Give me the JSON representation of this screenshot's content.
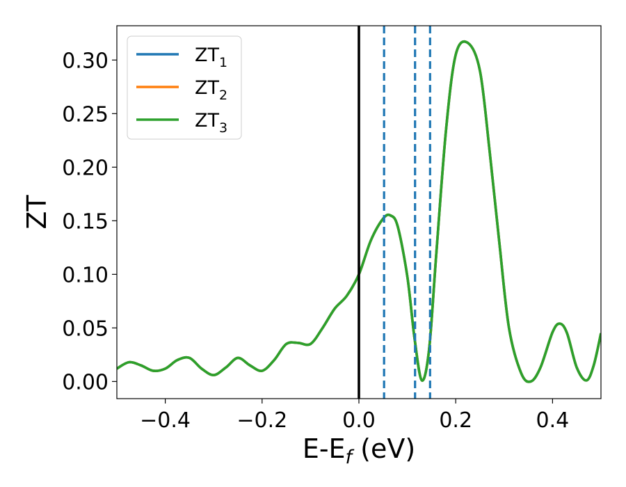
{
  "chart_data": {
    "type": "line",
    "xlabel": "E-E",
    "xlabel_sub": "f",
    "xlabel_unit": " (eV)",
    "ylabel": "ZT",
    "xlim": [
      -0.5,
      0.5
    ],
    "ylim": [
      -0.016,
      0.332
    ],
    "xticks": [
      -0.4,
      -0.2,
      0.0,
      0.2,
      0.4
    ],
    "xtick_labels": [
      "−0.4",
      "−0.2",
      "0.0",
      "0.2",
      "0.4"
    ],
    "yticks": [
      0.0,
      0.05,
      0.1,
      0.15,
      0.2,
      0.25,
      0.3
    ],
    "ytick_labels": [
      "0.00",
      "0.05",
      "0.10",
      "0.15",
      "0.20",
      "0.25",
      "0.30"
    ],
    "grid": false,
    "legend_position": "top-left",
    "series": [
      {
        "name": "ZT",
        "sub": "1",
        "color": "#1f77b4",
        "x": [
          -0.5,
          -0.475,
          -0.45,
          -0.425,
          -0.4,
          -0.375,
          -0.35,
          -0.325,
          -0.3,
          -0.275,
          -0.25,
          -0.225,
          -0.2,
          -0.175,
          -0.15,
          -0.125,
          -0.1,
          -0.075,
          -0.05,
          -0.025,
          0.0,
          0.025,
          0.05,
          0.065,
          0.08,
          0.1,
          0.115,
          0.13,
          0.145,
          0.16,
          0.18,
          0.2,
          0.225,
          0.25,
          0.27,
          0.29,
          0.31,
          0.335,
          0.355,
          0.375,
          0.4,
          0.415,
          0.43,
          0.45,
          0.47,
          0.485,
          0.5
        ],
        "y": [
          0.012,
          0.018,
          0.015,
          0.01,
          0.012,
          0.02,
          0.022,
          0.012,
          0.006,
          0.013,
          0.022,
          0.015,
          0.01,
          0.02,
          0.035,
          0.036,
          0.035,
          0.05,
          0.068,
          0.08,
          0.1,
          0.132,
          0.152,
          0.155,
          0.145,
          0.098,
          0.04,
          0.001,
          0.03,
          0.12,
          0.235,
          0.305,
          0.316,
          0.29,
          0.215,
          0.13,
          0.05,
          0.008,
          0.0,
          0.013,
          0.046,
          0.054,
          0.045,
          0.013,
          0.001,
          0.015,
          0.045
        ]
      },
      {
        "name": "ZT",
        "sub": "2",
        "color": "#ff7f0e",
        "x": [
          -0.5,
          -0.475,
          -0.45,
          -0.425,
          -0.4,
          -0.375,
          -0.35,
          -0.325,
          -0.3,
          -0.275,
          -0.25,
          -0.225,
          -0.2,
          -0.175,
          -0.15,
          -0.125,
          -0.1,
          -0.075,
          -0.05,
          -0.025,
          0.0,
          0.025,
          0.05,
          0.065,
          0.08,
          0.1,
          0.115,
          0.13,
          0.145,
          0.16,
          0.18,
          0.2,
          0.225,
          0.25,
          0.27,
          0.29,
          0.31,
          0.335,
          0.355,
          0.375,
          0.4,
          0.415,
          0.43,
          0.45,
          0.47,
          0.485,
          0.5
        ],
        "y": [
          0.012,
          0.018,
          0.015,
          0.01,
          0.012,
          0.02,
          0.022,
          0.012,
          0.006,
          0.013,
          0.022,
          0.015,
          0.01,
          0.02,
          0.035,
          0.036,
          0.035,
          0.05,
          0.068,
          0.08,
          0.1,
          0.132,
          0.152,
          0.155,
          0.145,
          0.098,
          0.04,
          0.001,
          0.03,
          0.12,
          0.235,
          0.305,
          0.316,
          0.29,
          0.215,
          0.13,
          0.05,
          0.008,
          0.0,
          0.013,
          0.046,
          0.054,
          0.045,
          0.013,
          0.001,
          0.015,
          0.045
        ]
      },
      {
        "name": "ZT",
        "sub": "3",
        "color": "#2ca02c",
        "x": [
          -0.5,
          -0.475,
          -0.45,
          -0.425,
          -0.4,
          -0.375,
          -0.35,
          -0.325,
          -0.3,
          -0.275,
          -0.25,
          -0.225,
          -0.2,
          -0.175,
          -0.15,
          -0.125,
          -0.1,
          -0.075,
          -0.05,
          -0.025,
          0.0,
          0.025,
          0.05,
          0.065,
          0.08,
          0.1,
          0.115,
          0.13,
          0.145,
          0.16,
          0.18,
          0.2,
          0.225,
          0.25,
          0.27,
          0.29,
          0.31,
          0.335,
          0.355,
          0.375,
          0.4,
          0.415,
          0.43,
          0.45,
          0.47,
          0.485,
          0.5
        ],
        "y": [
          0.012,
          0.018,
          0.015,
          0.01,
          0.012,
          0.02,
          0.022,
          0.012,
          0.006,
          0.013,
          0.022,
          0.015,
          0.01,
          0.02,
          0.035,
          0.036,
          0.035,
          0.05,
          0.068,
          0.08,
          0.1,
          0.132,
          0.152,
          0.155,
          0.145,
          0.098,
          0.04,
          0.001,
          0.03,
          0.12,
          0.235,
          0.305,
          0.316,
          0.29,
          0.215,
          0.13,
          0.05,
          0.008,
          0.0,
          0.013,
          0.046,
          0.054,
          0.045,
          0.013,
          0.001,
          0.015,
          0.045
        ]
      }
    ],
    "vertical_lines": [
      {
        "x": 0.0,
        "style": "solid",
        "color": "#000000"
      },
      {
        "x": 0.052,
        "style": "dashed",
        "color": "#1f77b4"
      },
      {
        "x": 0.116,
        "style": "dashed",
        "color": "#1f77b4"
      },
      {
        "x": 0.147,
        "style": "dashed",
        "color": "#1f77b4"
      }
    ]
  }
}
